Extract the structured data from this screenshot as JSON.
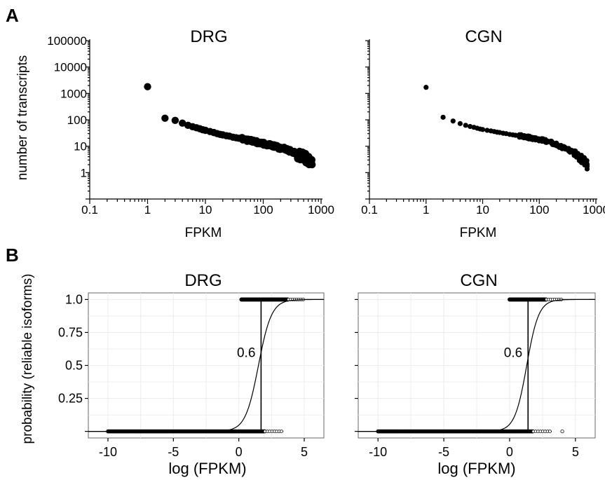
{
  "panel_labels": {
    "a": "A",
    "b": "B"
  },
  "chart_data": [
    {
      "type": "scatter",
      "panel": "A",
      "title": "DRG",
      "xlabel": "FPKM",
      "ylabel": "number of transcripts",
      "xscale": "log",
      "yscale": "log",
      "xlim": [
        0.1,
        1000
      ],
      "ylim": [
        0.1,
        100000
      ],
      "x_tick_labels": [
        "0.1",
        "1",
        "10",
        "100",
        "1000"
      ],
      "y_tick_labels": [
        "1",
        "10",
        "100",
        "1000",
        "10000",
        "100000"
      ],
      "marker": "filled-circle-large",
      "series": [
        {
          "x": [
            1,
            2,
            3,
            4,
            5,
            6,
            7,
            8,
            9,
            10,
            12,
            14,
            16,
            18,
            20,
            23,
            26,
            30,
            34,
            38,
            43,
            48,
            55,
            62,
            70,
            80,
            90,
            100,
            115,
            130,
            150,
            170,
            200,
            230,
            260,
            300,
            340,
            390,
            440,
            500,
            550,
            600,
            650,
            700
          ],
          "y": [
            1800,
            115,
            95,
            75,
            62,
            55,
            50,
            46,
            42,
            40,
            36,
            33,
            30,
            28,
            27,
            25,
            24,
            22,
            21,
            20,
            19,
            18,
            17,
            16,
            15,
            14,
            13,
            12.5,
            12,
            11,
            10,
            9.5,
            8.5,
            8,
            7,
            6.5,
            6,
            5,
            4.5,
            4,
            3.5,
            3,
            2.5,
            2
          ]
        }
      ]
    },
    {
      "type": "scatter",
      "panel": "A",
      "title": "CGN",
      "xlabel": "FPKM",
      "ylabel": "",
      "xscale": "log",
      "yscale": "log",
      "xlim": [
        0.1,
        1000
      ],
      "ylim": [
        0.1,
        100000
      ],
      "x_tick_labels": [
        "0.1",
        "1",
        "10",
        "100",
        "1000"
      ],
      "y_tick_labels": [
        "1",
        "10",
        "100",
        "1000",
        "10000",
        "100000"
      ],
      "marker": "filled-circle-small",
      "series": [
        {
          "x": [
            1,
            2,
            3,
            4,
            5,
            6,
            7,
            8,
            9,
            10,
            12,
            14,
            16,
            18,
            20,
            23,
            26,
            30,
            34,
            38,
            43,
            48,
            55,
            62,
            70,
            80,
            90,
            100,
            115,
            130,
            150,
            170,
            200,
            230,
            260,
            300,
            340,
            390,
            440,
            500,
            550,
            600,
            650,
            700
          ],
          "y": [
            1700,
            125,
            90,
            72,
            62,
            56,
            52,
            48,
            45,
            43,
            40,
            38,
            36,
            34,
            33,
            31,
            30,
            28,
            27,
            26,
            25,
            24,
            23,
            22,
            21,
            20,
            19,
            18,
            17,
            16,
            15,
            13,
            12,
            10,
            9,
            8,
            7,
            6,
            5,
            4,
            3.5,
            3,
            2.5,
            2
          ]
        }
      ]
    },
    {
      "type": "scatter",
      "panel": "B",
      "title": "DRG",
      "xlabel": "log (FPKM)",
      "ylabel": "probability (reliable isoforms)",
      "xlim": [
        -11.5,
        6.5
      ],
      "ylim": [
        -0.05,
        1.05
      ],
      "x_ticks": [
        -10,
        -5,
        0,
        5
      ],
      "y_ticks": [
        0.25,
        0.5,
        0.75,
        1.0
      ],
      "x_tick_labels": [
        "-10",
        "-5",
        "0",
        "5"
      ],
      "y_tick_labels": [
        "0.25",
        "0.5",
        "0.75",
        "1.0"
      ],
      "grid": true,
      "points_y0_x_range": [
        -10,
        3.4
      ],
      "points_y1_x_range": [
        0.2,
        5.0
      ],
      "logistic_fit": {
        "midpoint": 1.5,
        "slope": 2.0
      },
      "threshold_line": {
        "x": 1.7,
        "label": "0.6"
      }
    },
    {
      "type": "scatter",
      "panel": "B",
      "title": "CGN",
      "xlabel": "log (FPKM)",
      "ylabel": "",
      "xlim": [
        -11.5,
        6.5
      ],
      "ylim": [
        -0.05,
        1.05
      ],
      "x_ticks": [
        -10,
        -5,
        0,
        5
      ],
      "y_ticks": [
        0.25,
        0.5,
        0.75,
        1.0
      ],
      "x_tick_labels": [
        "-10",
        "-5",
        "0",
        "5"
      ],
      "y_tick_labels": [
        "",
        "",
        "",
        ""
      ],
      "grid": true,
      "points_y0_x_range": [
        -10,
        3.2
      ],
      "points_y0_outlier_x": 4.0,
      "points_y1_x_range": [
        0.0,
        4.0
      ],
      "logistic_fit": {
        "midpoint": 1.3,
        "slope": 2.2
      },
      "threshold_line": {
        "x": 1.4,
        "label": "0.6"
      }
    }
  ]
}
